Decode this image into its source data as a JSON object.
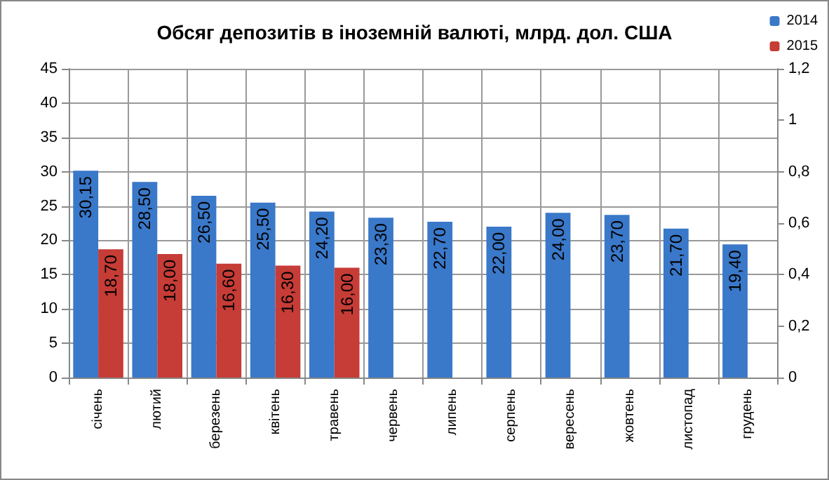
{
  "chart_data": {
    "type": "bar",
    "title": "Обсяг депозитів в іноземній валюті, млрд. дол. США",
    "categories": [
      "січень",
      "лютий",
      "березень",
      "квітень",
      "травень",
      "червень",
      "липень",
      "серпень",
      "вересень",
      "жовтень",
      "листопад",
      "грудень"
    ],
    "series": [
      {
        "name": "2014",
        "color": "#3a78c9",
        "values": [
          30.15,
          28.5,
          26.5,
          25.5,
          24.2,
          23.3,
          22.7,
          22.0,
          24.0,
          23.7,
          21.7,
          19.4
        ],
        "value_labels": [
          "30,15",
          "28,50",
          "26,50",
          "25,50",
          "24,20",
          "23,30",
          "22,70",
          "22,00",
          "24,00",
          "23,70",
          "21,70",
          "19,40"
        ]
      },
      {
        "name": "2015",
        "color": "#c63c36",
        "values": [
          18.7,
          18.0,
          16.6,
          16.3,
          16.0,
          null,
          null,
          null,
          null,
          null,
          null,
          null
        ],
        "value_labels": [
          "18,70",
          "18,00",
          "16,60",
          "16,30",
          "16,00",
          null,
          null,
          null,
          null,
          null,
          null,
          null
        ]
      }
    ],
    "ylim": [
      0,
      45
    ],
    "yticks": [
      0,
      5,
      10,
      15,
      20,
      25,
      30,
      35,
      40,
      45
    ],
    "y2lim": [
      0,
      1.2
    ],
    "y2ticks": [
      0,
      {
        "value": 0.2,
        "label": "0,2"
      },
      {
        "value": 0.4,
        "label": "0,4"
      },
      {
        "value": 0.6,
        "label": "0,6"
      },
      {
        "value": 0.8,
        "label": "0,8"
      },
      1,
      {
        "value": 1.2,
        "label": "1,2"
      }
    ],
    "grid": true,
    "legend": "top right"
  }
}
